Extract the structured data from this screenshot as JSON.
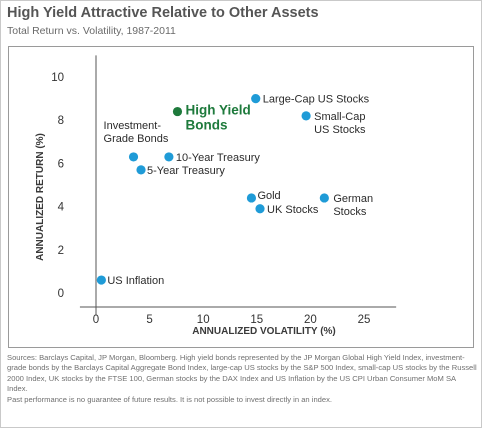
{
  "header": {
    "title": "High Yield Attractive Relative to Other Assets",
    "subtitle": "Total Return vs. Volatility, 1987-2011"
  },
  "chart_data": {
    "type": "scatter",
    "xlabel": "ANNUALIZED VOLATILITY (%)",
    "ylabel": "ANNUALIZED RETURN (%)",
    "xlim": [
      -1.5,
      28
    ],
    "ylim": [
      -1,
      11
    ],
    "xticks": [
      "0",
      "5",
      "10",
      "15",
      "20",
      "25"
    ],
    "yticks": [
      "0",
      "2",
      "4",
      "6",
      "8",
      "10"
    ],
    "grid": false,
    "legend": "none",
    "colors": {
      "point": "#1f9bd7",
      "highlight": "#1e7a3c",
      "axis": "#555555",
      "label": "#2b2b2b"
    },
    "points": [
      {
        "label": [
          "US Inflation"
        ],
        "x": 0.5,
        "y": 0.6,
        "highlight": false
      },
      {
        "label": [
          "Investment-",
          "Grade Bonds"
        ],
        "x": 3.5,
        "y": 6.3,
        "highlight": false
      },
      {
        "label": [
          "5-Year Treasury"
        ],
        "x": 4.2,
        "y": 5.7,
        "highlight": false
      },
      {
        "label": [
          "10-Year Treasury"
        ],
        "x": 6.8,
        "y": 6.3,
        "highlight": false
      },
      {
        "label": [
          "High Yield",
          "Bonds"
        ],
        "x": 7.6,
        "y": 8.4,
        "highlight": true
      },
      {
        "label": [
          "Large-Cap US Stocks"
        ],
        "x": 14.9,
        "y": 9.0,
        "highlight": false
      },
      {
        "label": [
          "Small-Cap",
          "US Stocks"
        ],
        "x": 19.6,
        "y": 8.2,
        "highlight": false
      },
      {
        "label": [
          "Gold"
        ],
        "x": 14.5,
        "y": 4.4,
        "highlight": false
      },
      {
        "label": [
          "UK Stocks"
        ],
        "x": 15.3,
        "y": 3.9,
        "highlight": false
      },
      {
        "label": [
          "German",
          "Stocks"
        ],
        "x": 21.3,
        "y": 4.4,
        "highlight": false
      }
    ]
  },
  "footer": {
    "sources": "Sources: Barclays Capital, JP Morgan, Bloomberg. High yield bonds represented by the JP Morgan Global High Yield Index, investment-grade bonds by the Barclays Capital Aggregate Bond Index, large-cap US stocks by the S&P 500 Index, small-cap US stocks by the Russell 2000 Index, UK stocks by the FTSE 100, German stocks by the DAX Index and US Inflation by the US CPI Urban Consumer MoM SA Index.",
    "disclaimer": "Past performance is no guarantee of future results. It is not possible to invest directly in an index."
  }
}
